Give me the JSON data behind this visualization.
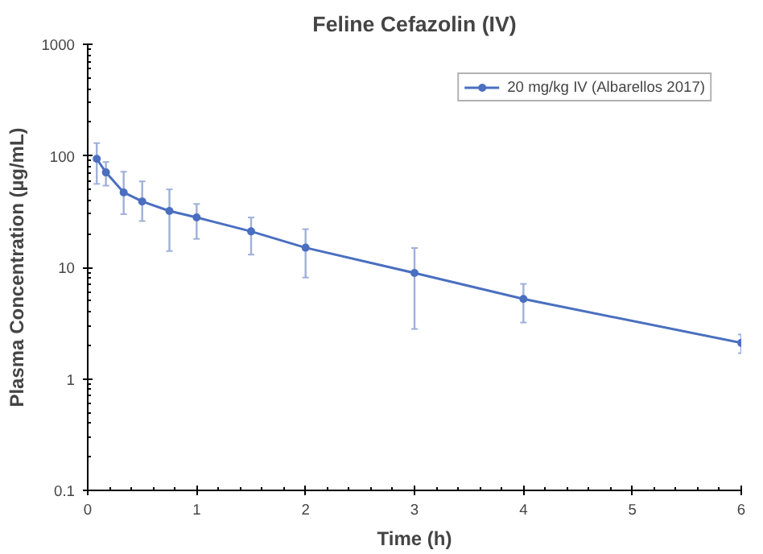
{
  "chart_data": {
    "type": "line",
    "title": "Feline Cefazolin (IV)",
    "xlabel": "Time (h)",
    "ylabel": "Plasma Concentration (µg/mL)",
    "x": [
      0.083,
      0.167,
      0.33,
      0.5,
      0.75,
      1,
      1.5,
      2,
      3,
      4,
      6
    ],
    "series": [
      {
        "name": "20 mg/kg IV (Albarellos 2017)",
        "color": "#4a6fc0",
        "values": [
          94,
          71,
          47,
          39,
          32,
          28,
          21,
          15,
          8.9,
          5.2,
          2.1
        ],
        "errors": [
          [
            56,
            130
          ],
          [
            54,
            88
          ],
          [
            30,
            72
          ],
          [
            26,
            59
          ],
          [
            14,
            50
          ],
          [
            18,
            37
          ],
          [
            13,
            28
          ],
          [
            8.1,
            22
          ],
          [
            2.8,
            14.9
          ],
          [
            3.2,
            7.1
          ],
          [
            1.7,
            2.5
          ]
        ]
      }
    ],
    "xlim": [
      0,
      6
    ],
    "xticks": [
      0,
      1,
      2,
      3,
      4,
      5,
      6
    ],
    "ylim": [
      0.1,
      1000
    ],
    "yticks": [
      0.1,
      1,
      10,
      100,
      1000
    ],
    "log": "y",
    "grid": false,
    "legend": "top right",
    "marker": "circle",
    "line_style": "solid"
  }
}
